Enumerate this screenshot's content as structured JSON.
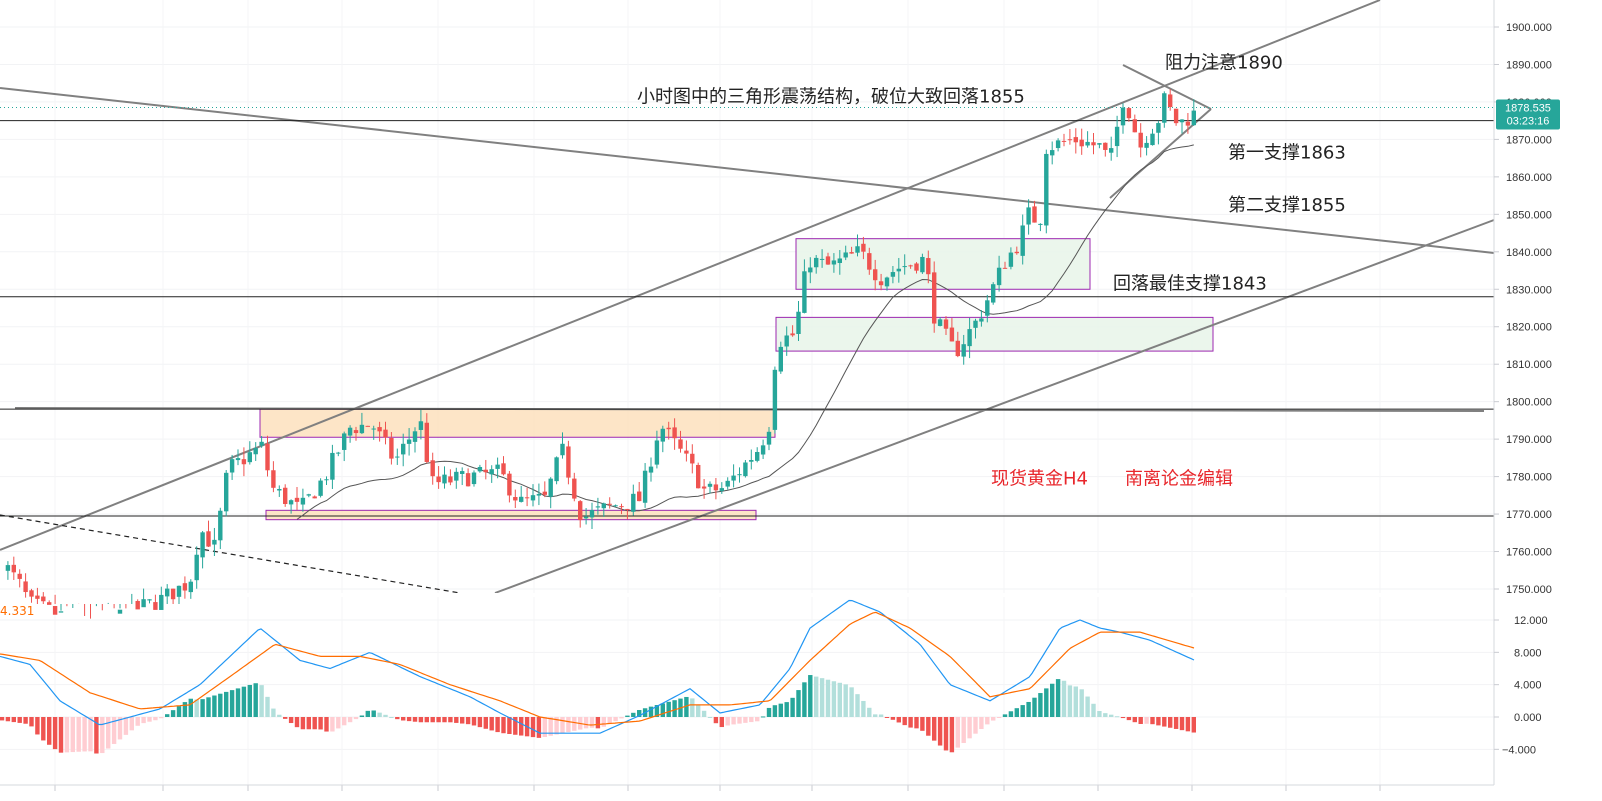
{
  "chart_data": [
    {
      "type": "candlestick",
      "ylim": [
        1746,
        1905
      ],
      "y_ticks": [
        "1750.000",
        "1760.000",
        "1770.000",
        "1780.000",
        "1790.000",
        "1800.000",
        "1810.000",
        "1820.000",
        "1830.000",
        "1840.000",
        "1850.000",
        "1860.000",
        "1870.000",
        "1880.000",
        "1890.000",
        "1900.000"
      ],
      "current_price": {
        "value": "1878.535",
        "countdown": "03:23:16",
        "color": "#26a69a"
      },
      "levels": [
        1875,
        1828,
        1798,
        1769.5
      ],
      "annotations": [
        {
          "text": "阻力注意1890",
          "price": 1890.5,
          "color": "#222222"
        },
        {
          "text": "小时图中的三角形震荡结构，破位大致回落1855",
          "price": 1881.5,
          "color": "#222222"
        },
        {
          "text": "第一支撑1863",
          "price": 1866.5,
          "color": "#222222"
        },
        {
          "text": "第二支撑1855",
          "price": 1852.5,
          "color": "#222222"
        },
        {
          "text": "回落最佳支撑1843",
          "price": 1831.5,
          "color": "#222222"
        },
        {
          "text": "现货黄金H4",
          "price": 1779.5,
          "color": "#e8262b"
        },
        {
          "text": "南离论金编辑",
          "price": 1779.5,
          "color": "#e8262b"
        }
      ],
      "zones": [
        {
          "name": "upper-consolidation",
          "from": 1830,
          "to": 1843.5,
          "fill": "#e8f5e9",
          "stroke": "#9c27b0"
        },
        {
          "name": "lower-consolidation",
          "from": 1813.5,
          "to": 1822.5,
          "fill": "#e8f5e9",
          "stroke": "#9c27b0"
        },
        {
          "name": "resistance-zone",
          "from": 1790.5,
          "to": 1798,
          "fill": "#fde0bd",
          "stroke": "#9c27b0"
        },
        {
          "name": "support-zone",
          "from": 1768.5,
          "to": 1771,
          "fill": "#fde0bd",
          "stroke": "#9c27b0"
        }
      ],
      "colors": {
        "up": "#26a69a",
        "down": "#ef5350",
        "ma": "#555555"
      }
    },
    {
      "type": "macd",
      "ylim": [
        -6,
        15
      ],
      "y_ticks": [
        "12.000",
        "8.000",
        "4.000",
        "0.000",
        "−4.000"
      ],
      "macd_readout": "4.331",
      "colors": {
        "macd": "#2196f3",
        "signal": "#ff6d00",
        "hist_up_strong": "#26a69a",
        "hist_up_weak": "#b2dfdb",
        "hist_down_strong": "#ef5350",
        "hist_down_weak": "#ffcdd2"
      }
    }
  ]
}
